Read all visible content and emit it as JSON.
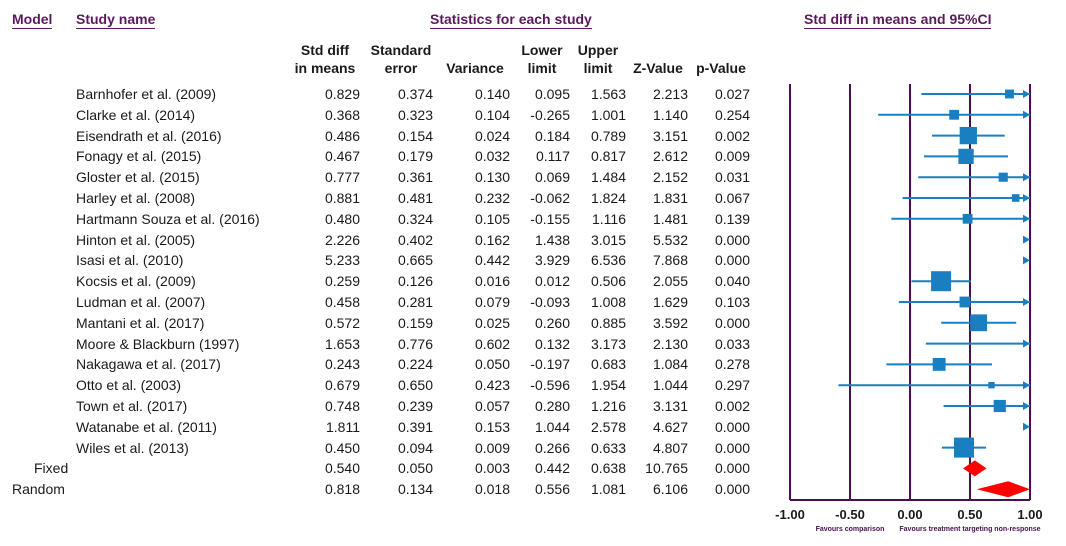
{
  "headers": {
    "model": "Model",
    "study": "Study name",
    "stats": "Statistics for each study",
    "plot": "Std diff in means and 95%CI"
  },
  "columns": {
    "std_diff": [
      "Std diff",
      "in means"
    ],
    "std_err": [
      "Standard",
      "error"
    ],
    "variance": "Variance",
    "lower": [
      "Lower",
      "limit"
    ],
    "upper": [
      "Upper",
      "limit"
    ],
    "z": "Z-Value",
    "p": "p-Value"
  },
  "chart_data": {
    "type": "forest",
    "xlim": [
      -1.0,
      1.0
    ],
    "xticks": [
      "-1.00",
      "-0.50",
      "0.00",
      "0.50",
      "1.00"
    ],
    "xtick_values": [
      -1.0,
      -0.5,
      0.0,
      0.5,
      1.0
    ],
    "favours_left": "Favours comparison",
    "favours_right": "Favours treatment targeting non-response",
    "studies": [
      {
        "name": "Barnhofer et al. (2009)",
        "es": "0.829",
        "se": "0.374",
        "var": "0.140",
        "lower": "0.095",
        "upper": "1.563",
        "z": "2.213",
        "p": "0.027"
      },
      {
        "name": "Clarke et al. (2014)",
        "es": "0.368",
        "se": "0.323",
        "var": "0.104",
        "lower": "-0.265",
        "upper": "1.001",
        "z": "1.140",
        "p": "0.254"
      },
      {
        "name": "Eisendrath et al. (2016)",
        "es": "0.486",
        "se": "0.154",
        "var": "0.024",
        "lower": "0.184",
        "upper": "0.789",
        "z": "3.151",
        "p": "0.002"
      },
      {
        "name": "Fonagy et al. (2015)",
        "es": "0.467",
        "se": "0.179",
        "var": "0.032",
        "lower": "0.117",
        "upper": "0.817",
        "z": "2.612",
        "p": "0.009"
      },
      {
        "name": "Gloster et al. (2015)",
        "es": "0.777",
        "se": "0.361",
        "var": "0.130",
        "lower": "0.069",
        "upper": "1.484",
        "z": "2.152",
        "p": "0.031"
      },
      {
        "name": "Harley et al. (2008)",
        "es": "0.881",
        "se": "0.481",
        "var": "0.232",
        "lower": "-0.062",
        "upper": "1.824",
        "z": "1.831",
        "p": "0.067"
      },
      {
        "name": "Hartmann Souza et al. (2016)",
        "es": "0.480",
        "se": "0.324",
        "var": "0.105",
        "lower": "-0.155",
        "upper": "1.116",
        "z": "1.481",
        "p": "0.139"
      },
      {
        "name": "Hinton et al. (2005)",
        "es": "2.226",
        "se": "0.402",
        "var": "0.162",
        "lower": "1.438",
        "upper": "3.015",
        "z": "5.532",
        "p": "0.000"
      },
      {
        "name": "Isasi et al. (2010)",
        "es": "5.233",
        "se": "0.665",
        "var": "0.442",
        "lower": "3.929",
        "upper": "6.536",
        "z": "7.868",
        "p": "0.000"
      },
      {
        "name": "Kocsis et al. (2009)",
        "es": "0.259",
        "se": "0.126",
        "var": "0.016",
        "lower": "0.012",
        "upper": "0.506",
        "z": "2.055",
        "p": "0.040"
      },
      {
        "name": "Ludman et al. (2007)",
        "es": "0.458",
        "se": "0.281",
        "var": "0.079",
        "lower": "-0.093",
        "upper": "1.008",
        "z": "1.629",
        "p": "0.103"
      },
      {
        "name": "Mantani et al. (2017)",
        "es": "0.572",
        "se": "0.159",
        "var": "0.025",
        "lower": "0.260",
        "upper": "0.885",
        "z": "3.592",
        "p": "0.000"
      },
      {
        "name": "Moore & Blackburn (1997)",
        "es": "1.653",
        "se": "0.776",
        "var": "0.602",
        "lower": "0.132",
        "upper": "3.173",
        "z": "2.130",
        "p": "0.033"
      },
      {
        "name": "Nakagawa et al. (2017)",
        "es": "0.243",
        "se": "0.224",
        "var": "0.050",
        "lower": "-0.197",
        "upper": "0.683",
        "z": "1.084",
        "p": "0.278"
      },
      {
        "name": "Otto et al. (2003)",
        "es": "0.679",
        "se": "0.650",
        "var": "0.423",
        "lower": "-0.596",
        "upper": "1.954",
        "z": "1.044",
        "p": "0.297"
      },
      {
        "name": "Town et al. (2017)",
        "es": "0.748",
        "se": "0.239",
        "var": "0.057",
        "lower": "0.280",
        "upper": "1.216",
        "z": "3.131",
        "p": "0.002"
      },
      {
        "name": "Watanabe et al. (2011)",
        "es": "1.811",
        "se": "0.391",
        "var": "0.153",
        "lower": "1.044",
        "upper": "2.578",
        "z": "4.627",
        "p": "0.000"
      },
      {
        "name": "Wiles et al. (2013)",
        "es": "0.450",
        "se": "0.094",
        "var": "0.009",
        "lower": "0.266",
        "upper": "0.633",
        "z": "4.807",
        "p": "0.000"
      }
    ],
    "pooled": [
      {
        "model": "Fixed",
        "es": "0.540",
        "se": "0.050",
        "var": "0.003",
        "lower": "0.442",
        "upper": "0.638",
        "z": "10.765",
        "p": "0.000"
      },
      {
        "model": "Random",
        "es": "0.818",
        "se": "0.134",
        "var": "0.018",
        "lower": "0.556",
        "upper": "1.081",
        "z": "6.106",
        "p": "0.000"
      }
    ],
    "colors": {
      "study": "#1a7fc0",
      "pooled": "#ff0000",
      "axis": "#4a1050"
    }
  }
}
